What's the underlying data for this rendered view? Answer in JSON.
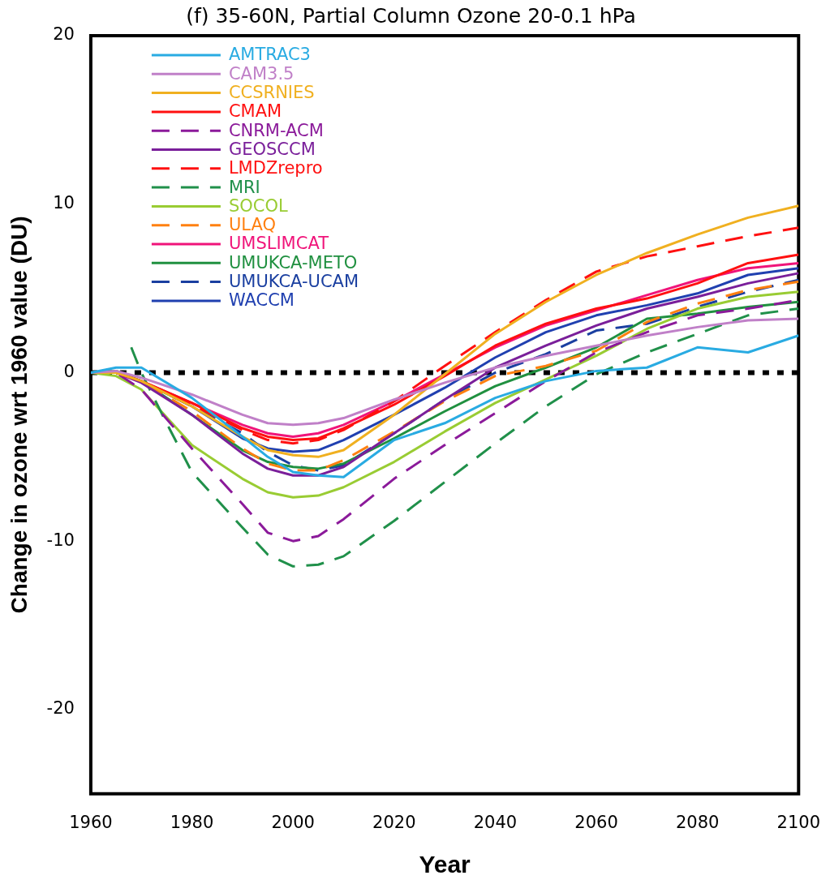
{
  "chart_data": {
    "type": "line",
    "title": "(f) 35-60N, Partial Column Ozone 20-0.1 hPa",
    "xlabel": "Year",
    "ylabel": "Change in ozone wrt 1960 value (DU)",
    "x": [
      1960,
      1965,
      1970,
      1980,
      1990,
      1995,
      2000,
      2005,
      2010,
      2020,
      2030,
      2040,
      2050,
      2060,
      2070,
      2080,
      2090,
      2100
    ],
    "xlim": [
      1960,
      2100
    ],
    "xticks": [
      1960,
      1980,
      2000,
      2020,
      2040,
      2060,
      2080,
      2100
    ],
    "ylim": [
      -25,
      20
    ],
    "yticks": [
      -20,
      -10,
      0,
      10,
      20
    ],
    "grid": false,
    "legend": "top left",
    "marker": "none",
    "ref_lines": [
      {
        "axis": "y",
        "value": 0,
        "color": "#000000",
        "line_style": "dotted"
      }
    ],
    "series": [
      {
        "name": "AMTRAC3",
        "color": "#29abe2",
        "line_style": "solid",
        "values": [
          0,
          0.3,
          0.3,
          -1.5,
          -3.8,
          -5.0,
          -5.9,
          -6.1,
          -6.2,
          -4.0,
          -3.0,
          -1.5,
          -0.5,
          0.1,
          0.3,
          1.5,
          1.2,
          2.2
        ]
      },
      {
        "name": "CAM3.5",
        "color": "#c080c8",
        "line_style": "solid",
        "values": [
          0,
          0.1,
          -0.3,
          -1.3,
          -2.5,
          -3.0,
          -3.1,
          -3.0,
          -2.7,
          -1.6,
          -0.6,
          0.3,
          1.0,
          1.6,
          2.2,
          2.7,
          3.1,
          3.2
        ]
      },
      {
        "name": "CCSRNIES",
        "color": "#f0b020",
        "line_style": "solid",
        "values": [
          0,
          0,
          -0.5,
          -2.0,
          -3.8,
          -4.6,
          -4.9,
          -5.0,
          -4.6,
          -2.5,
          -0.1,
          2.3,
          4.2,
          5.8,
          7.1,
          8.2,
          9.2,
          9.9
        ]
      },
      {
        "name": "CMAM",
        "color": "#ff1010",
        "line_style": "solid",
        "values": [
          0,
          0,
          -0.5,
          -1.8,
          -3.3,
          -3.8,
          -4.0,
          -3.9,
          -3.3,
          -1.9,
          -0.2,
          1.6,
          2.9,
          3.8,
          4.4,
          5.3,
          6.5,
          7.0
        ]
      },
      {
        "name": "CNRM-ACM",
        "color": "#8b1a9a",
        "line_style": "dashed",
        "values": [
          0,
          0,
          -1.0,
          -4.5,
          -7.8,
          -9.5,
          -10.0,
          -9.7,
          -8.7,
          -6.3,
          -4.3,
          -2.4,
          -0.5,
          1.2,
          2.4,
          3.4,
          3.8,
          4.3
        ]
      },
      {
        "name": "GEOSCCM",
        "color": "#7a1f9a",
        "line_style": "solid",
        "values": [
          0,
          0,
          -0.6,
          -2.5,
          -4.8,
          -5.7,
          -6.1,
          -6.1,
          -5.6,
          -3.6,
          -1.6,
          0.3,
          1.6,
          2.8,
          3.8,
          4.5,
          5.3,
          5.9
        ]
      },
      {
        "name": "LMDZrepro",
        "color": "#ff1010",
        "line_style": "dashed",
        "values": [
          0,
          0,
          -0.5,
          -1.9,
          -3.4,
          -4.0,
          -4.2,
          -4.0,
          -3.4,
          -1.7,
          0.4,
          2.4,
          4.3,
          6.0,
          6.9,
          7.5,
          8.1,
          8.6
        ]
      },
      {
        "name": "MRI",
        "color": "#20904a",
        "line_style": "dashed",
        "x": [
          1968,
          1970,
          1975,
          1980,
          1990,
          1995,
          2000,
          2005,
          2010,
          2020,
          2030,
          2040,
          2050,
          2060,
          2070,
          2080,
          2090,
          2100
        ],
        "values": [
          1.5,
          0,
          -3.0,
          -5.9,
          -9.2,
          -10.8,
          -11.5,
          -11.4,
          -10.9,
          -8.8,
          -6.5,
          -4.2,
          -2.0,
          -0.1,
          1.2,
          2.3,
          3.4,
          3.8
        ]
      },
      {
        "name": "SOCOL",
        "color": "#99cc33",
        "line_style": "solid",
        "values": [
          0,
          -0.2,
          -1.0,
          -4.3,
          -6.3,
          -7.1,
          -7.4,
          -7.3,
          -6.8,
          -5.3,
          -3.5,
          -1.8,
          -0.4,
          1.0,
          2.6,
          3.8,
          4.5,
          4.8
        ]
      },
      {
        "name": "ULAQ",
        "color": "#ff8010",
        "line_style": "dashed",
        "values": [
          0,
          0,
          -0.5,
          -2.3,
          -4.5,
          -5.4,
          -5.8,
          -5.8,
          -5.2,
          -3.5,
          -1.7,
          -0.2,
          0.4,
          1.3,
          3.0,
          4.1,
          4.9,
          5.4
        ]
      },
      {
        "name": "UMSLIMCAT",
        "color": "#f0147a",
        "line_style": "solid",
        "values": [
          0,
          0,
          -0.5,
          -1.8,
          -3.1,
          -3.6,
          -3.8,
          -3.6,
          -3.1,
          -1.7,
          -0.1,
          1.5,
          2.8,
          3.7,
          4.6,
          5.5,
          6.2,
          6.5
        ]
      },
      {
        "name": "UMUKCA-METO",
        "color": "#209040",
        "line_style": "solid",
        "values": [
          0,
          0.1,
          -0.5,
          -2.5,
          -4.6,
          -5.3,
          -5.6,
          -5.7,
          -5.4,
          -3.9,
          -2.3,
          -0.8,
          0.3,
          1.5,
          3.2,
          3.5,
          3.9,
          4.2
        ]
      },
      {
        "name": "UMUKCA-UCAM",
        "color": "#1a3fa0",
        "line_style": "dashed",
        "values": [
          0,
          0,
          -0.5,
          -2.0,
          -3.6,
          -4.7,
          -5.5,
          -5.8,
          -5.5,
          -3.6,
          -1.6,
          0.0,
          1.1,
          2.5,
          2.9,
          3.9,
          4.8,
          5.5
        ]
      },
      {
        "name": "WACCM",
        "color": "#2040b0",
        "line_style": "solid",
        "values": [
          0,
          0,
          -0.5,
          -2.0,
          -3.9,
          -4.5,
          -4.7,
          -4.6,
          -4.0,
          -2.5,
          -0.9,
          0.9,
          2.4,
          3.4,
          4.0,
          4.7,
          5.8,
          6.2
        ]
      }
    ]
  }
}
